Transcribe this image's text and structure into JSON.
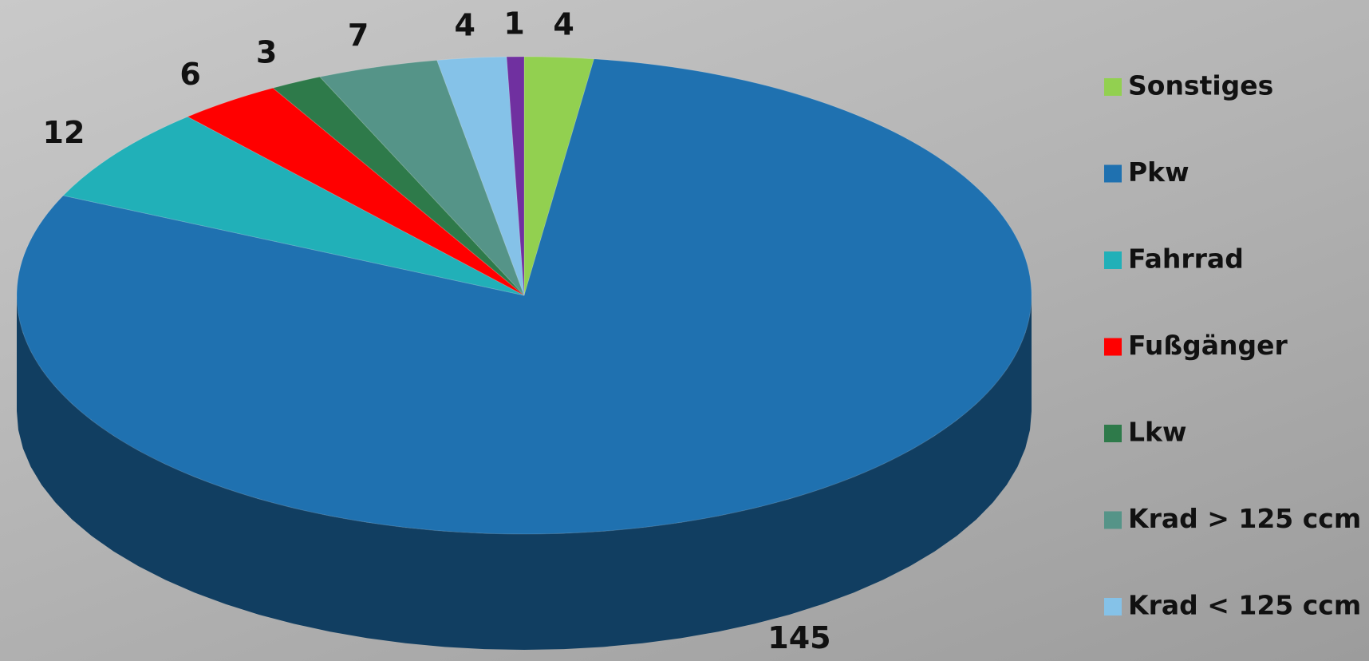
{
  "chart_data": {
    "type": "pie3d",
    "categories": [
      "Sonstiges",
      "Pkw",
      "Fahrrad",
      "Fußgänger",
      "Lkw",
      "Krad > 125 ccm",
      "Krad < 125 ccm",
      null
    ],
    "values": [
      4,
      145,
      12,
      6,
      3,
      7,
      4,
      1
    ],
    "colors": [
      "#92d050",
      "#1f71b0",
      "#21b0b8",
      "#ff0000",
      "#2e7a4a",
      "#559488",
      "#85c2e8",
      "#7030a0"
    ],
    "legend": "right"
  }
}
